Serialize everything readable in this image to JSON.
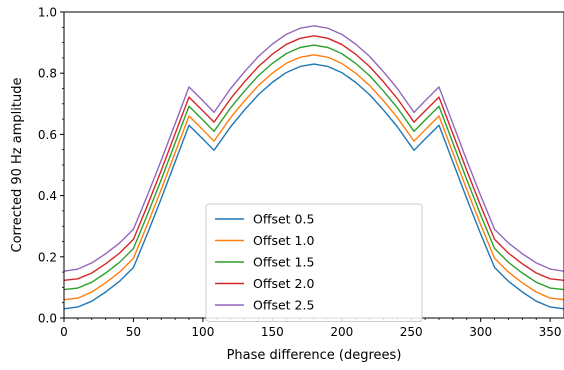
{
  "chart_data": {
    "type": "line",
    "xlabel": "Phase difference (degrees)",
    "ylabel": "Corrected 90 Hz amplitude",
    "xlim": [
      0,
      360
    ],
    "ylim": [
      0.0,
      1.0
    ],
    "xticks": [
      0,
      50,
      100,
      150,
      200,
      250,
      300,
      350
    ],
    "yticks": [
      0.0,
      0.2,
      0.4,
      0.6,
      0.8,
      1.0
    ],
    "ytick_labels": [
      "0.0",
      "0.2",
      "0.4",
      "0.6",
      "0.8",
      "1.0"
    ],
    "grid": false,
    "legend_position": "lower-center",
    "reference_line": {
      "y": 0.0,
      "color": "#000000"
    },
    "x": [
      0,
      10,
      20,
      30,
      40,
      50,
      60,
      70,
      80,
      90,
      100,
      108,
      120,
      130,
      140,
      150,
      160,
      170,
      180,
      190,
      200,
      210,
      220,
      230,
      240,
      252,
      260,
      270,
      280,
      290,
      300,
      310,
      320,
      330,
      340,
      350,
      360
    ],
    "series": [
      {
        "name": "Offset 0.5",
        "color": "#1f77b4",
        "values": [
          0.03,
          0.036,
          0.055,
          0.085,
          0.12,
          0.165,
          0.275,
          0.39,
          0.51,
          0.63,
          0.585,
          0.548,
          0.625,
          0.68,
          0.73,
          0.77,
          0.802,
          0.822,
          0.83,
          0.822,
          0.802,
          0.77,
          0.73,
          0.68,
          0.625,
          0.548,
          0.585,
          0.63,
          0.51,
          0.39,
          0.275,
          0.165,
          0.12,
          0.085,
          0.055,
          0.036,
          0.03
        ]
      },
      {
        "name": "Offset 1.0",
        "color": "#ff7f0e",
        "values": [
          0.06,
          0.065,
          0.085,
          0.115,
          0.15,
          0.195,
          0.305,
          0.42,
          0.54,
          0.66,
          0.615,
          0.578,
          0.655,
          0.71,
          0.76,
          0.8,
          0.832,
          0.852,
          0.86,
          0.852,
          0.832,
          0.8,
          0.76,
          0.71,
          0.655,
          0.578,
          0.615,
          0.66,
          0.54,
          0.42,
          0.305,
          0.195,
          0.15,
          0.115,
          0.085,
          0.065,
          0.06
        ]
      },
      {
        "name": "Offset 1.5",
        "color": "#2ca02c",
        "values": [
          0.093,
          0.098,
          0.117,
          0.147,
          0.182,
          0.227,
          0.337,
          0.452,
          0.572,
          0.692,
          0.647,
          0.61,
          0.687,
          0.742,
          0.792,
          0.832,
          0.864,
          0.884,
          0.892,
          0.884,
          0.864,
          0.832,
          0.792,
          0.742,
          0.687,
          0.61,
          0.647,
          0.692,
          0.572,
          0.452,
          0.337,
          0.227,
          0.182,
          0.147,
          0.117,
          0.098,
          0.093
        ]
      },
      {
        "name": "Offset 2.0",
        "color": "#d62728",
        "values": [
          0.123,
          0.128,
          0.147,
          0.177,
          0.212,
          0.257,
          0.367,
          0.482,
          0.602,
          0.722,
          0.677,
          0.64,
          0.717,
          0.772,
          0.822,
          0.862,
          0.894,
          0.914,
          0.922,
          0.914,
          0.894,
          0.862,
          0.822,
          0.772,
          0.717,
          0.64,
          0.677,
          0.722,
          0.602,
          0.482,
          0.367,
          0.257,
          0.212,
          0.177,
          0.147,
          0.128,
          0.123
        ]
      },
      {
        "name": "Offset 2.5",
        "color": "#9467bd",
        "values": [
          0.153,
          0.16,
          0.18,
          0.21,
          0.245,
          0.29,
          0.4,
          0.515,
          0.635,
          0.755,
          0.71,
          0.672,
          0.75,
          0.805,
          0.855,
          0.895,
          0.927,
          0.947,
          0.955,
          0.947,
          0.927,
          0.895,
          0.855,
          0.805,
          0.75,
          0.672,
          0.71,
          0.755,
          0.635,
          0.515,
          0.4,
          0.29,
          0.245,
          0.21,
          0.18,
          0.16,
          0.153
        ]
      }
    ]
  }
}
